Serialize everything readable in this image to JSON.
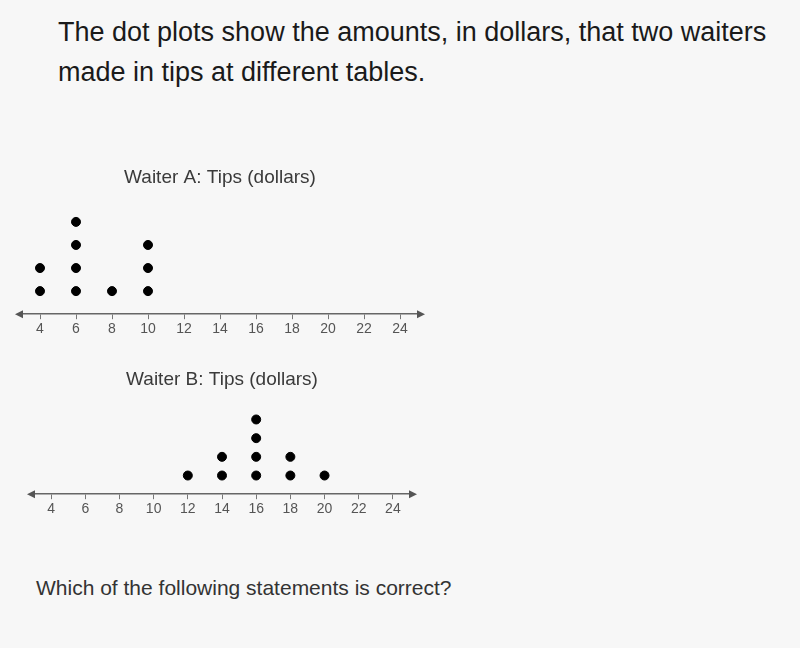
{
  "text": {
    "prompt": "The dot plots show the amounts, in dollars, that two waiters made in tips at different tables.",
    "question": "Which of the following statements is correct?"
  },
  "chart_data": [
    {
      "type": "dot",
      "title": "Waiter A: Tips (dollars)",
      "x": [
        4,
        6,
        8,
        10
      ],
      "values": [
        2,
        4,
        1,
        3
      ],
      "color": "#000000",
      "xlim": [
        3,
        25
      ],
      "xticks": [
        4,
        6,
        8,
        10,
        12,
        14,
        16,
        18,
        20,
        22,
        24
      ],
      "ylim": [
        0,
        5
      ],
      "tick_labels": "x",
      "grid": false
    },
    {
      "type": "dot",
      "title": "Waiter B: Tips (dollars)",
      "x": [
        12,
        14,
        16,
        18,
        20
      ],
      "values": [
        1,
        2,
        4,
        2,
        1
      ],
      "color": "#000000",
      "xlim": [
        3,
        25
      ],
      "xticks": [
        4,
        6,
        8,
        10,
        12,
        14,
        16,
        18,
        20,
        22,
        24
      ],
      "ylim": [
        0,
        5
      ],
      "tick_labels": "x",
      "grid": false
    }
  ]
}
